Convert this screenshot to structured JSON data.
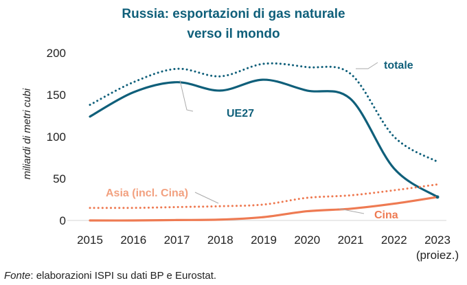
{
  "colors": {
    "teal": "#0f5f7a",
    "orange": "#ee7a52",
    "light_orange": "#f2a07f",
    "gray": "#aaaaaa",
    "axis": "#d6d6d6",
    "text": "#222222"
  },
  "chart_data": {
    "type": "line",
    "title": [
      "Russia: esportazioni di gas naturale",
      "verso il mondo"
    ],
    "ylabel": "miliardi di metri cubi",
    "xlabel": "",
    "x": [
      2015,
      2016,
      2017,
      2018,
      2019,
      2020,
      2021,
      2022,
      2023
    ],
    "x_tick_labels": [
      "2015",
      "2016",
      "2017",
      "2018",
      "2019",
      "2020",
      "2021",
      "2022",
      "2023"
    ],
    "x_tick_note": "(proiez.)",
    "ylim": [
      0,
      200
    ],
    "y_ticks": [
      0,
      50,
      100,
      150,
      200
    ],
    "grid": false,
    "legend": "direct labels",
    "series": [
      {
        "name": "totale",
        "style": "dotted",
        "values": [
          138,
          165,
          181,
          172,
          187,
          183,
          175,
          100,
          70
        ]
      },
      {
        "name": "UE27",
        "style": "solid",
        "values": [
          124,
          153,
          165,
          155,
          168,
          155,
          145,
          62,
          28
        ]
      },
      {
        "name": "Asia (incl. Cina)",
        "style": "dotted",
        "values": [
          15,
          15,
          16,
          17,
          19,
          27,
          30,
          36,
          43
        ]
      },
      {
        "name": "Cina",
        "style": "solid",
        "values": [
          0,
          0,
          0.5,
          1,
          4,
          11,
          14,
          20,
          28
        ]
      }
    ],
    "source": {
      "prefix": "Fonte",
      "text": ": elaborazioni ISPI su dati BP e Eurostat."
    }
  }
}
